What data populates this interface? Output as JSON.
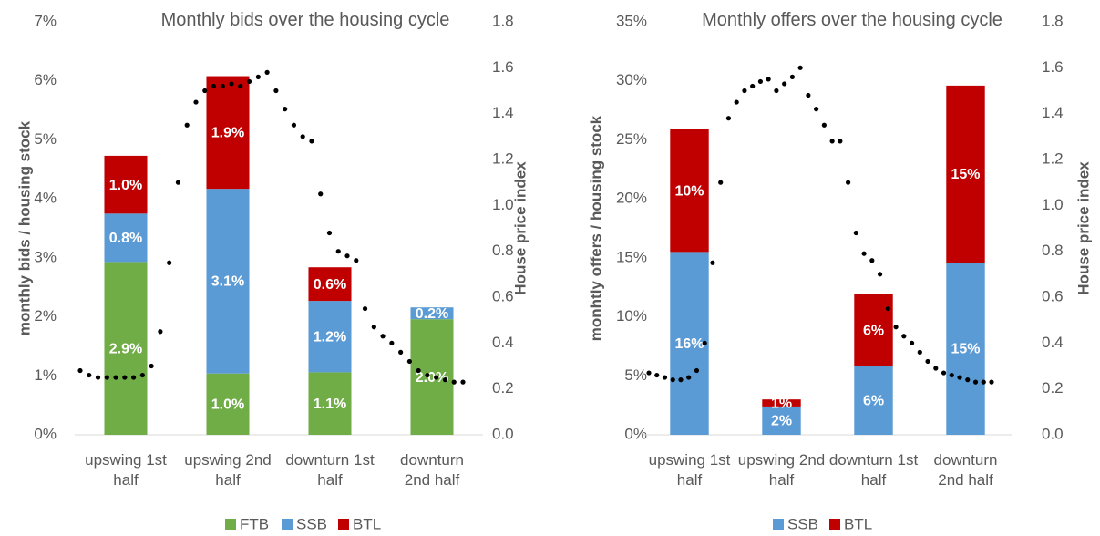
{
  "chart_data": [
    {
      "type": "bar",
      "stacked": true,
      "title": "Monthly bids over the housing cycle",
      "y_label": "monthly bids / housing stock",
      "y2_label": "House price index",
      "categories": [
        "upswing 1st half",
        "upswing 2nd half",
        "downturn 1st half",
        "downturn 2nd half"
      ],
      "series": [
        {
          "name": "FTB",
          "color": "#70ad47",
          "values": [
            2.93,
            1.04,
            1.06,
            1.96
          ],
          "value_labels": [
            "2.9%",
            "1.0%",
            "1.1%",
            "2.0%"
          ]
        },
        {
          "name": "SSB",
          "color": "#5b9bd5",
          "values": [
            0.82,
            3.13,
            1.21,
            0.2
          ],
          "value_labels": [
            "0.8%",
            "3.1%",
            "1.2%",
            "0.2%"
          ]
        },
        {
          "name": "BTL",
          "color": "#c00000",
          "values": [
            0.98,
            1.91,
            0.57,
            null
          ],
          "value_labels": [
            "1.0%",
            "1.9%",
            "0.6%",
            null
          ]
        }
      ],
      "line": {
        "type": "line",
        "axis": "y2",
        "color": "#000000",
        "style": "dotted",
        "values": [
          0.28,
          0.26,
          0.25,
          0.25,
          0.25,
          0.25,
          0.25,
          0.26,
          0.3,
          0.45,
          0.75,
          1.1,
          1.35,
          1.45,
          1.5,
          1.52,
          1.52,
          1.53,
          1.52,
          1.54,
          1.56,
          1.58,
          1.5,
          1.42,
          1.35,
          1.3,
          1.28,
          1.05,
          0.88,
          0.8,
          0.78,
          0.76,
          0.55,
          0.47,
          0.43,
          0.4,
          0.36,
          0.32,
          0.28,
          0.26,
          0.25,
          0.24,
          0.23,
          0.23
        ]
      },
      "ylim": [
        0,
        7
      ],
      "yticks": [
        {
          "value": 0,
          "label": "0%"
        },
        {
          "value": 1,
          "label": "1%"
        },
        {
          "value": 2,
          "label": "2%"
        },
        {
          "value": 3,
          "label": "3%"
        },
        {
          "value": 4,
          "label": "4%"
        },
        {
          "value": 5,
          "label": "5%"
        },
        {
          "value": 6,
          "label": "6%"
        },
        {
          "value": 7,
          "label": "7%"
        }
      ],
      "y2lim": [
        0,
        1.8
      ],
      "y2ticks": [
        {
          "value": 0,
          "label": "0.0"
        },
        0.2,
        0.4,
        0.6,
        0.8,
        {
          "value": 1,
          "label": "1.0"
        },
        1.2,
        1.4,
        1.6,
        1.8
      ],
      "legend": "bottom"
    },
    {
      "type": "bar",
      "stacked": true,
      "title": "Monthly offers over the housing cycle",
      "y_label": "monhtly offers / housing stock",
      "y2_label": "House price index",
      "categories": [
        "upswing 1st half",
        "upswing 2nd half",
        "downturn 1st half",
        "downturn 2nd half"
      ],
      "series": [
        {
          "name": "SSB",
          "color": "#5b9bd5",
          "values": [
            15.5,
            2.4,
            5.8,
            14.6
          ],
          "value_labels": [
            "16%",
            "2%",
            "6%",
            "15%"
          ]
        },
        {
          "name": "BTL",
          "color": "#c00000",
          "values": [
            10.4,
            0.6,
            6.1,
            15.0
          ],
          "value_labels": [
            "10%",
            "1%",
            "6%",
            "15%"
          ]
        }
      ],
      "line": {
        "type": "line",
        "axis": "y2",
        "color": "#000000",
        "style": "dotted",
        "values": [
          0.27,
          0.26,
          0.25,
          0.24,
          0.24,
          0.25,
          0.28,
          0.4,
          0.75,
          1.1,
          1.38,
          1.45,
          1.5,
          1.52,
          1.54,
          1.55,
          1.5,
          1.53,
          1.56,
          1.6,
          1.48,
          1.42,
          1.35,
          1.28,
          1.28,
          1.1,
          0.88,
          0.79,
          0.76,
          0.7,
          0.55,
          0.47,
          0.43,
          0.4,
          0.36,
          0.32,
          0.29,
          0.27,
          0.26,
          0.25,
          0.24,
          0.23,
          0.23,
          0.23
        ]
      },
      "ylim": [
        0,
        35
      ],
      "yticks": [
        {
          "value": 0,
          "label": "0%"
        },
        {
          "value": 5,
          "label": "5%"
        },
        {
          "value": 10,
          "label": "10%"
        },
        {
          "value": 15,
          "label": "15%"
        },
        {
          "value": 20,
          "label": "20%"
        },
        {
          "value": 25,
          "label": "25%"
        },
        {
          "value": 30,
          "label": "30%"
        },
        {
          "value": 35,
          "label": "35%"
        }
      ],
      "y2lim": [
        0,
        1.8
      ],
      "y2ticks": [
        {
          "value": 0,
          "label": "0.0"
        },
        0.2,
        0.4,
        0.6,
        0.8,
        {
          "value": 1,
          "label": "1.0"
        },
        1.2,
        1.4,
        1.6,
        1.8
      ],
      "legend": "bottom"
    }
  ]
}
